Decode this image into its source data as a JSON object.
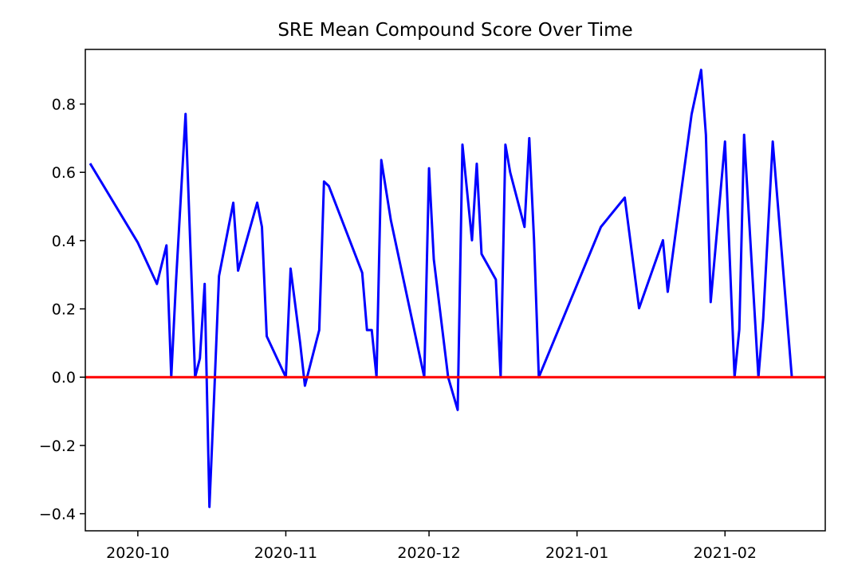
{
  "chart_data": {
    "type": "line",
    "title": "SRE Mean Compound Score Over Time",
    "xlabel": "",
    "ylabel": "",
    "x_range": [
      "2020-09-20",
      "2021-02-22"
    ],
    "ylim": [
      -0.45,
      0.96
    ],
    "y_ticks": [
      -0.4,
      -0.2,
      0.0,
      0.2,
      0.4,
      0.6,
      0.8
    ],
    "y_tick_labels": [
      "−0.4",
      "−0.2",
      "0.0",
      "0.2",
      "0.4",
      "0.6",
      "0.8"
    ],
    "x_ticks": [
      "2020-10-01",
      "2020-11-01",
      "2020-12-01",
      "2021-01-01",
      "2021-02-01"
    ],
    "x_tick_labels": [
      "2020-10",
      "2020-11",
      "2020-12",
      "2021-01",
      "2021-02"
    ],
    "grid": false,
    "reference_line": {
      "y": 0.0,
      "color": "#ff0000"
    },
    "series": [
      {
        "color": "#0000ff",
        "points": [
          {
            "x": "2020-09-21",
            "y": 0.626
          },
          {
            "x": "2020-10-01",
            "y": 0.394
          },
          {
            "x": "2020-10-05",
            "y": 0.273
          },
          {
            "x": "2020-10-07",
            "y": 0.386
          },
          {
            "x": "2020-10-08",
            "y": 0.0
          },
          {
            "x": "2020-10-09",
            "y": 0.28
          },
          {
            "x": "2020-10-11",
            "y": 0.771
          },
          {
            "x": "2020-10-13",
            "y": 0.0
          },
          {
            "x": "2020-10-14",
            "y": 0.055
          },
          {
            "x": "2020-10-15",
            "y": 0.273
          },
          {
            "x": "2020-10-16",
            "y": -0.38
          },
          {
            "x": "2020-10-17",
            "y": -0.05
          },
          {
            "x": "2020-10-18",
            "y": 0.296
          },
          {
            "x": "2020-10-21",
            "y": 0.511
          },
          {
            "x": "2020-10-22",
            "y": 0.312
          },
          {
            "x": "2020-10-26",
            "y": 0.511
          },
          {
            "x": "2020-10-27",
            "y": 0.44
          },
          {
            "x": "2020-10-28",
            "y": 0.12
          },
          {
            "x": "2020-11-01",
            "y": 0.0
          },
          {
            "x": "2020-11-02",
            "y": 0.318
          },
          {
            "x": "2020-11-04",
            "y": 0.1
          },
          {
            "x": "2020-11-05",
            "y": -0.025
          },
          {
            "x": "2020-11-08",
            "y": 0.138
          },
          {
            "x": "2020-11-09",
            "y": 0.573
          },
          {
            "x": "2020-11-10",
            "y": 0.56
          },
          {
            "x": "2020-11-17",
            "y": 0.306
          },
          {
            "x": "2020-11-18",
            "y": 0.138
          },
          {
            "x": "2020-11-19",
            "y": 0.138
          },
          {
            "x": "2020-11-20",
            "y": 0.0
          },
          {
            "x": "2020-11-21",
            "y": 0.636
          },
          {
            "x": "2020-11-23",
            "y": 0.46
          },
          {
            "x": "2020-11-30",
            "y": 0.0
          },
          {
            "x": "2020-12-01",
            "y": 0.612
          },
          {
            "x": "2020-12-02",
            "y": 0.345
          },
          {
            "x": "2020-12-05",
            "y": 0.0
          },
          {
            "x": "2020-12-07",
            "y": -0.096
          },
          {
            "x": "2020-12-08",
            "y": 0.681
          },
          {
            "x": "2020-12-10",
            "y": 0.401
          },
          {
            "x": "2020-12-11",
            "y": 0.625
          },
          {
            "x": "2020-12-12",
            "y": 0.361
          },
          {
            "x": "2020-12-15",
            "y": 0.286
          },
          {
            "x": "2020-12-16",
            "y": 0.0
          },
          {
            "x": "2020-12-17",
            "y": 0.681
          },
          {
            "x": "2020-12-18",
            "y": 0.6
          },
          {
            "x": "2020-12-21",
            "y": 0.44
          },
          {
            "x": "2020-12-22",
            "y": 0.7
          },
          {
            "x": "2020-12-23",
            "y": 0.4
          },
          {
            "x": "2020-12-24",
            "y": 0.0
          },
          {
            "x": "2021-01-06",
            "y": 0.44
          },
          {
            "x": "2021-01-11",
            "y": 0.526
          },
          {
            "x": "2021-01-14",
            "y": 0.202
          },
          {
            "x": "2021-01-19",
            "y": 0.401
          },
          {
            "x": "2021-01-20",
            "y": 0.25
          },
          {
            "x": "2021-01-25",
            "y": 0.77
          },
          {
            "x": "2021-01-27",
            "y": 0.9
          },
          {
            "x": "2021-01-28",
            "y": 0.71
          },
          {
            "x": "2021-01-29",
            "y": 0.22
          },
          {
            "x": "2021-02-01",
            "y": 0.69
          },
          {
            "x": "2021-02-03",
            "y": 0.0
          },
          {
            "x": "2021-02-04",
            "y": 0.14
          },
          {
            "x": "2021-02-05",
            "y": 0.71
          },
          {
            "x": "2021-02-08",
            "y": 0.0
          },
          {
            "x": "2021-02-09",
            "y": 0.17
          },
          {
            "x": "2021-02-11",
            "y": 0.69
          },
          {
            "x": "2021-02-15",
            "y": 0.0
          }
        ]
      }
    ]
  }
}
